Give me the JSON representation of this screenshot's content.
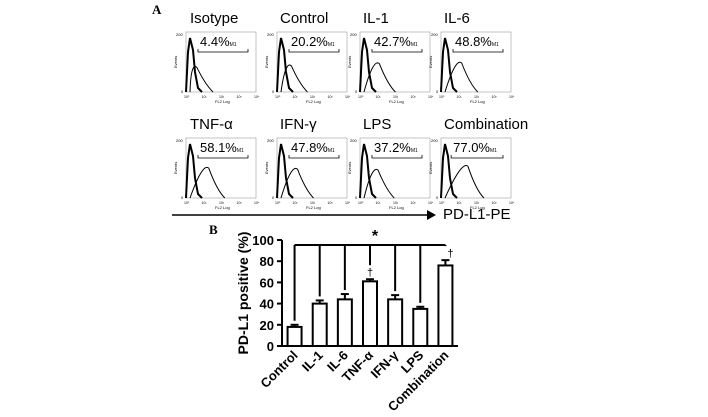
{
  "panel_a": {
    "letter": "A"
  },
  "panel_b": {
    "letter": "B"
  },
  "histograms": [
    {
      "title": "Isotype",
      "pct": "4.4%",
      "gate": "M1"
    },
    {
      "title": "Control",
      "pct": "20.2%",
      "gate": "M1"
    },
    {
      "title": "IL-1",
      "pct": "42.7%",
      "gate": "M1"
    },
    {
      "title": "IL-6",
      "pct": "48.8%",
      "gate": "M1"
    },
    {
      "title": "TNF-α",
      "pct": "58.1%",
      "gate": "M1"
    },
    {
      "title": "IFN-γ",
      "pct": "47.8%",
      "gate": "M1"
    },
    {
      "title": "LPS",
      "pct": "37.2%",
      "gate": "M1"
    },
    {
      "title": "Combination",
      "pct": "77.0%",
      "gate": "M1"
    }
  ],
  "histogram_axis": {
    "ylabel": "Events",
    "xlabel": "FL2 Log",
    "ymax": "200",
    "ymin": "0"
  },
  "axis_arrow_label": "PD-L1-PE",
  "chart_data": {
    "type": "bar",
    "categories": [
      "Control",
      "IL-1",
      "IL-6",
      "TNF-α",
      "IFN-γ",
      "LPS",
      "Combination"
    ],
    "values": [
      18,
      40,
      44,
      61,
      44,
      35,
      76
    ],
    "errors": [
      2,
      3,
      5,
      2,
      4,
      2,
      5
    ],
    "ylabel": "PD-L1 positive (%)",
    "ylim": [
      0,
      100
    ],
    "yticks": [
      0,
      20,
      40,
      60,
      80,
      100
    ],
    "significance_marker": "*",
    "dagger_marker": "†",
    "dagger_categories": [
      "TNF-α",
      "Combination"
    ]
  }
}
